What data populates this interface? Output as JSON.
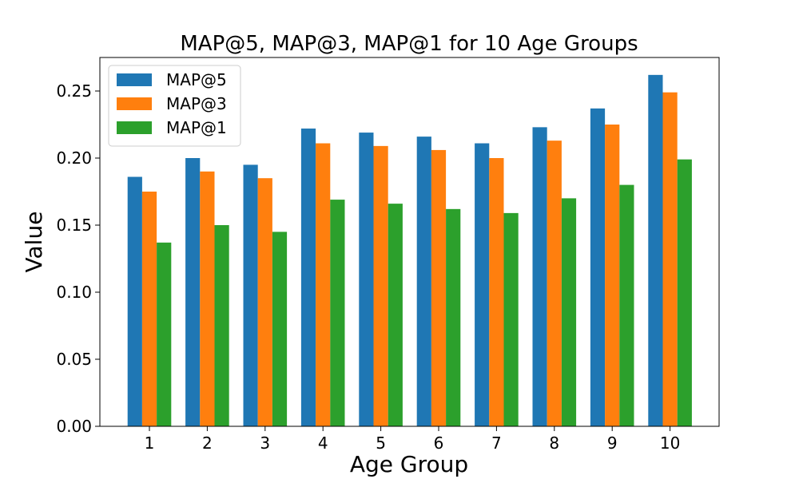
{
  "chart_data": {
    "type": "bar",
    "title": "MAP@5, MAP@3, MAP@1 for 10 Age Groups",
    "xlabel": "Age Group",
    "ylabel": "Value",
    "categories": [
      "1",
      "2",
      "3",
      "4",
      "5",
      "6",
      "7",
      "8",
      "9",
      "10"
    ],
    "ylim": [
      0,
      0.275
    ],
    "yticks": [
      "0.00",
      "0.05",
      "0.10",
      "0.15",
      "0.20",
      "0.25"
    ],
    "grid": false,
    "legend_position": "top-left",
    "series": [
      {
        "name": "MAP@5",
        "color": "#1f77b4",
        "values": [
          0.186,
          0.2,
          0.195,
          0.222,
          0.219,
          0.216,
          0.211,
          0.223,
          0.237,
          0.262
        ]
      },
      {
        "name": "MAP@3",
        "color": "#ff7f0e",
        "values": [
          0.175,
          0.19,
          0.185,
          0.211,
          0.209,
          0.206,
          0.2,
          0.213,
          0.225,
          0.249
        ]
      },
      {
        "name": "MAP@1",
        "color": "#2ca02c",
        "values": [
          0.137,
          0.15,
          0.145,
          0.169,
          0.166,
          0.162,
          0.159,
          0.17,
          0.18,
          0.199
        ]
      }
    ]
  }
}
